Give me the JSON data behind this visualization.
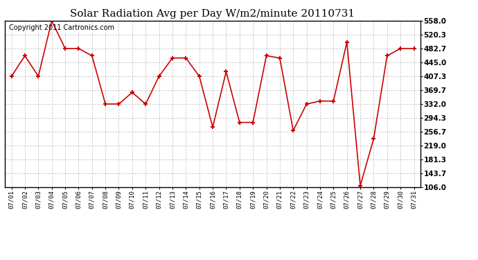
{
  "title": "Solar Radiation Avg per Day W/m2/minute 20110731",
  "copyright": "Copyright 2011 Cartronics.com",
  "dates": [
    "07/01",
    "07/02",
    "07/03",
    "07/04",
    "07/05",
    "07/06",
    "07/07",
    "07/08",
    "07/09",
    "07/10",
    "07/11",
    "07/12",
    "07/13",
    "07/14",
    "07/15",
    "07/16",
    "07/17",
    "07/18",
    "07/19",
    "07/20",
    "07/21",
    "07/22",
    "07/23",
    "07/24",
    "07/25",
    "07/26",
    "07/27",
    "07/28",
    "07/29",
    "07/30",
    "07/31"
  ],
  "values": [
    407.3,
    463.0,
    407.3,
    558.0,
    482.7,
    482.7,
    463.0,
    332.0,
    332.0,
    363.5,
    332.0,
    407.3,
    457.0,
    457.0,
    407.3,
    269.0,
    420.0,
    282.0,
    282.0,
    463.0,
    457.0,
    260.0,
    332.0,
    340.0,
    340.0,
    500.0,
    110.0,
    238.0,
    463.0,
    482.7,
    482.7
  ],
  "line_color": "#cc0000",
  "marker_color": "#cc0000",
  "bg_color": "#ffffff",
  "grid_color": "#bbbbbb",
  "yticks": [
    106.0,
    143.7,
    181.3,
    219.0,
    256.7,
    294.3,
    332.0,
    369.7,
    407.3,
    445.0,
    482.7,
    520.3,
    558.0
  ],
  "ymin": 106.0,
  "ymax": 558.0,
  "title_fontsize": 11,
  "copyright_fontsize": 7
}
